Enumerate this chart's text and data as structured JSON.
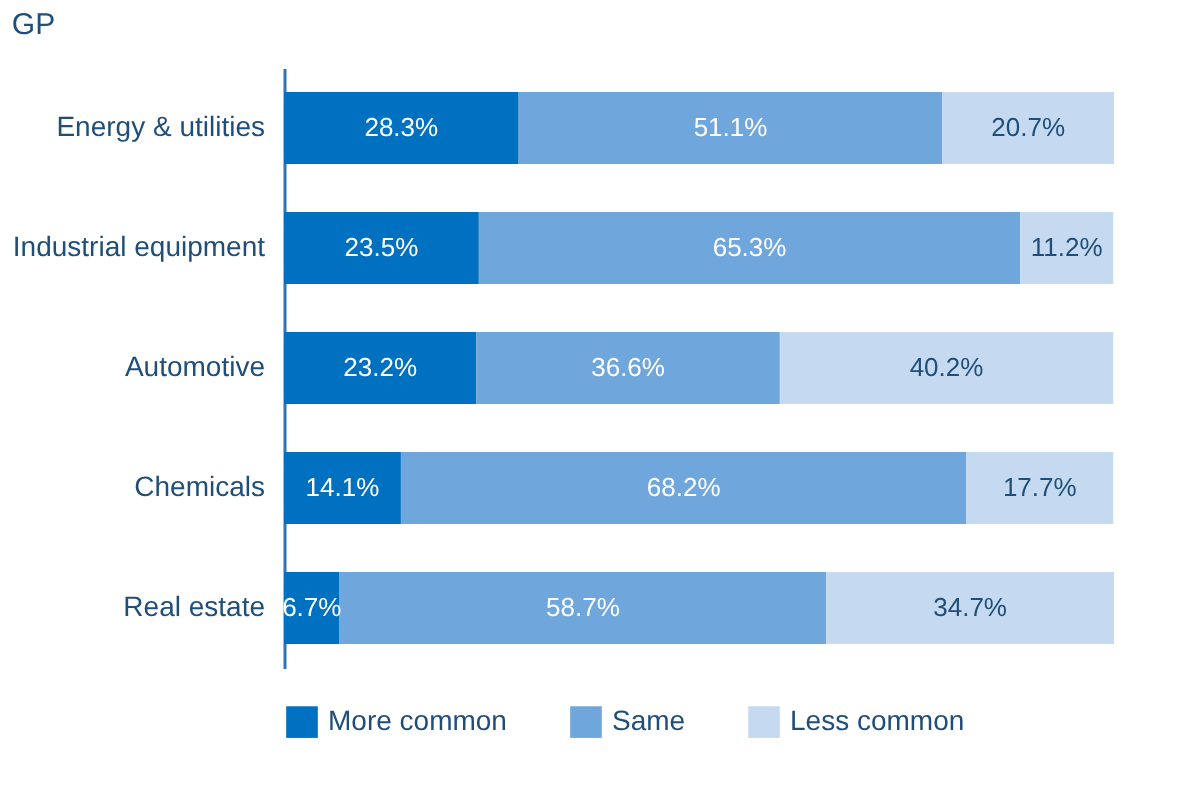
{
  "chart_data": {
    "type": "bar",
    "orientation": "horizontal",
    "stacked": true,
    "title": "GP",
    "categories": [
      "Energy & utilities",
      "Industrial equipment",
      "Automotive",
      "Chemicals",
      "Real estate"
    ],
    "series": [
      {
        "name": "More common",
        "color": "#0070c0",
        "values": [
          28.3,
          23.5,
          23.2,
          14.1,
          6.7
        ],
        "value_labels": [
          "28.3%",
          "23.5%",
          "23.2%",
          "14.1%",
          "6.7%"
        ]
      },
      {
        "name": "Same",
        "color": "#6fa6dc",
        "values": [
          51.1,
          65.3,
          36.6,
          68.2,
          58.7
        ],
        "value_labels": [
          "51.1%",
          "65.3%",
          "36.6%",
          "68.2%",
          "58.7%"
        ]
      },
      {
        "name": "Less common",
        "color": "#c5daf0",
        "values": [
          20.7,
          11.2,
          40.2,
          17.7,
          34.7
        ],
        "value_labels": [
          "20.7%",
          "11.2%",
          "40.2%",
          "17.7%",
          "34.7%"
        ]
      }
    ],
    "legend": "bottom",
    "grid": false
  }
}
